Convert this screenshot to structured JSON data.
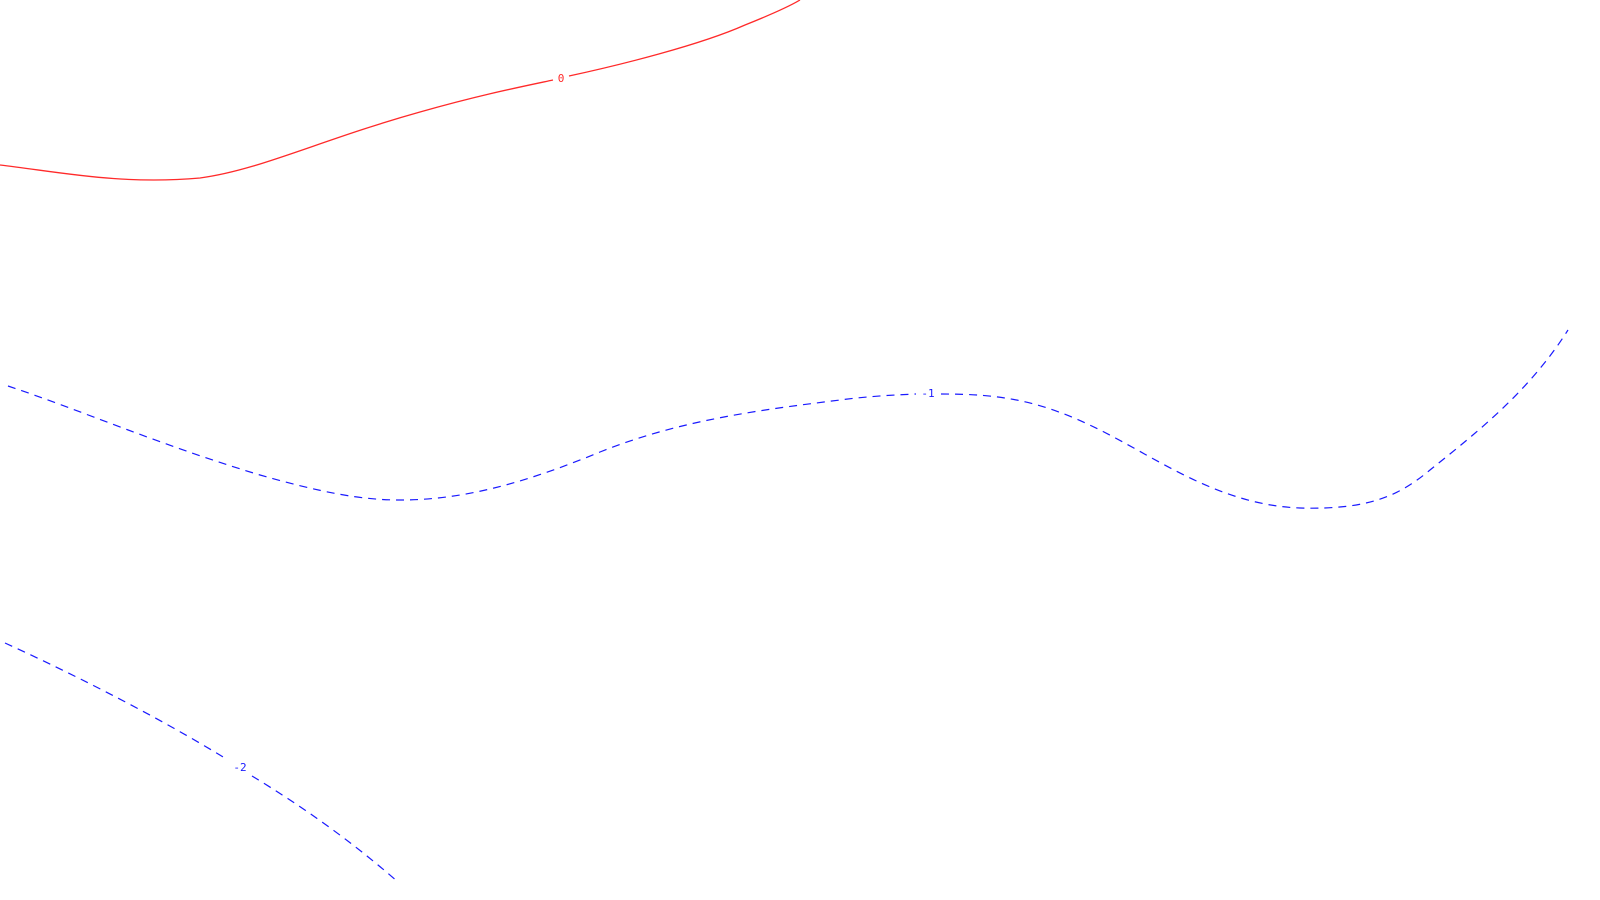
{
  "contours": [
    {
      "name": "contour-0",
      "label": "0",
      "color": "#ff2a2a",
      "style": "solid"
    },
    {
      "name": "contour-minus-1",
      "label": "-1",
      "color": "#1a1aff",
      "style": "dashed"
    },
    {
      "name": "contour-minus-2",
      "label": "-2",
      "color": "#1a1aff",
      "style": "dashed"
    }
  ]
}
